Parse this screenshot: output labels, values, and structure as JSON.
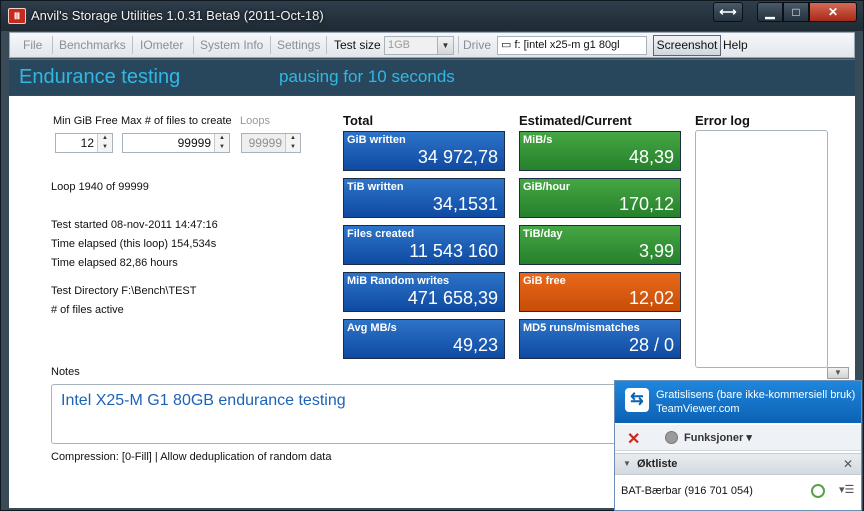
{
  "window": {
    "title": "Anvil's Storage Utilities 1.0.31 Beta9 (2011-Oct-18)",
    "app_icon": "anvil-icon",
    "buttons": {
      "resize": "⟷",
      "minimize": "▁",
      "maximize": "□",
      "close": "✕"
    }
  },
  "menu": {
    "file": "File",
    "benchmarks": "Benchmarks",
    "iometer": "IOmeter",
    "system_info": "System Info",
    "settings": "Settings",
    "test_size_label": "Test size",
    "test_size_value": "1GB",
    "drive_label": "Drive",
    "drive_value": "f: [intel x25-m g1 80gl",
    "screenshot": "Screenshot",
    "help": "Help"
  },
  "header": {
    "title": "Endurance testing",
    "status": "pausing for 10 seconds"
  },
  "controls": {
    "min_gib_free_label": "Min GiB Free",
    "min_gib_free_value": "12",
    "max_files_label": "Max # of files to create",
    "max_files_value": "99999",
    "loops_label": "Loops",
    "loops_value": "99999"
  },
  "info": {
    "loop": "Loop 1940 of 99999",
    "test_started": "Test started 08-nov-2011 14:47:16",
    "time_elapsed_loop": "Time elapsed (this loop) 154,534s",
    "time_elapsed": "Time elapsed 82,86 hours",
    "test_directory": "Test Directory F:\\Bench\\TEST",
    "files_active": "# of files active"
  },
  "total": {
    "heading": "Total",
    "tiles": [
      {
        "label": "GiB written",
        "value": "34 972,78"
      },
      {
        "label": "TiB written",
        "value": "34,1531"
      },
      {
        "label": "Files created",
        "value": "11 543 160"
      },
      {
        "label": "MiB Random writes",
        "value": "471 658,39"
      },
      {
        "label": "Avg MB/s",
        "value": "49,23"
      }
    ]
  },
  "estimated": {
    "heading": "Estimated/Current",
    "tiles": [
      {
        "label": "MiB/s",
        "value": "48,39"
      },
      {
        "label": "GiB/hour",
        "value": "170,12"
      },
      {
        "label": "TiB/day",
        "value": "3,99"
      },
      {
        "label": "GiB free",
        "value": "12,02"
      },
      {
        "label": "MD5 runs/mismatches",
        "value": "28  /  0"
      }
    ]
  },
  "error_log": {
    "heading": "Error log"
  },
  "notes": {
    "label": "Notes",
    "text": "Intel X25-M G1 80GB endurance testing",
    "compression": "Compression: [0-Fill] | Allow deduplication of random data"
  },
  "teamviewer": {
    "line1": "Gratislisens (bare ikke-kommersiell bruk)",
    "line2": "TeamViewer.com",
    "functions": "Funksjoner",
    "session_list": "Øktliste",
    "session_row": "BAT-Bærbar (916 701 054)"
  },
  "colors": {
    "header_bg": "#28475c",
    "accent_cyan": "#2fb8e4",
    "tile_blue": "#1a5fb8",
    "tile_green": "#2f8f33",
    "tile_orange": "#d95a0f"
  }
}
